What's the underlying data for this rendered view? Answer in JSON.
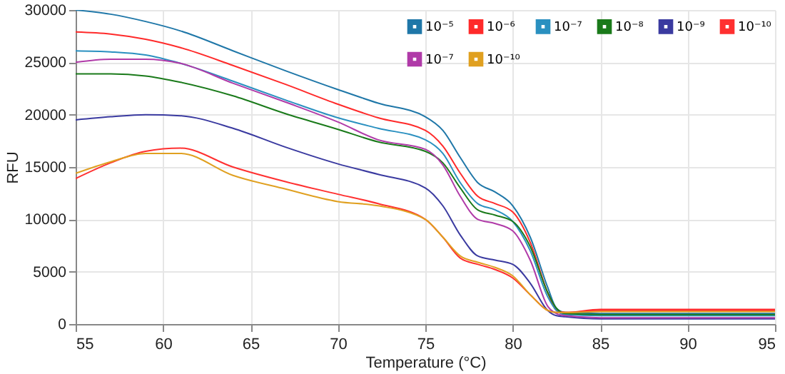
{
  "chart_data": {
    "type": "line",
    "xlabel": "Temperature (°C)",
    "ylabel": "RFU",
    "x": [
      55,
      57,
      59,
      61,
      64,
      67,
      70,
      72.3,
      75,
      76,
      77,
      78,
      79,
      80,
      81,
      82,
      82.5,
      83,
      85,
      90,
      95
    ],
    "xlim": [
      55,
      95
    ],
    "xticks": [
      55,
      60,
      65,
      70,
      75,
      80,
      85,
      90,
      95
    ],
    "ylim": [
      0,
      30000
    ],
    "yticks": [
      0,
      5000,
      10000,
      15000,
      20000,
      25000,
      30000
    ],
    "grid": true,
    "legend": "top right",
    "series": [
      {
        "name": "10⁻⁵",
        "color": "#1f77a8",
        "values": [
          30000,
          29600,
          28900,
          28000,
          26100,
          24200,
          22400,
          21100,
          19800,
          18500,
          15900,
          13500,
          12600,
          11300,
          8300,
          3500,
          1500,
          1100,
          1000,
          1000,
          1000
        ]
      },
      {
        "name": "10⁻⁶",
        "color": "#ff2a2a",
        "values": [
          27900,
          27700,
          27200,
          26400,
          24700,
          22900,
          21000,
          19700,
          18500,
          17000,
          14400,
          12200,
          11500,
          10700,
          7800,
          3000,
          1300,
          1100,
          1400,
          1400,
          1400
        ]
      },
      {
        "name": "10⁻⁷",
        "color": "#2a90c0",
        "values": [
          26100,
          26000,
          25700,
          24900,
          23200,
          21400,
          19700,
          18700,
          17600,
          16300,
          13500,
          11500,
          10900,
          9800,
          7000,
          2600,
          1300,
          900,
          800,
          800,
          800
        ]
      },
      {
        "name": "10⁻⁸",
        "color": "#1a7a1a",
        "values": [
          23900,
          23900,
          23700,
          23100,
          21800,
          20100,
          18600,
          17400,
          16500,
          15400,
          13000,
          10900,
          10400,
          9800,
          7400,
          3000,
          1500,
          1000,
          900,
          900,
          900
        ]
      },
      {
        "name": "10⁻⁹",
        "color": "#3a3aa0",
        "values": [
          19500,
          19800,
          20000,
          19900,
          18700,
          16900,
          15300,
          14300,
          13000,
          11300,
          8500,
          6500,
          6100,
          5700,
          3900,
          1300,
          800,
          700,
          500,
          500,
          500
        ]
      },
      {
        "name": "10⁻¹⁰",
        "color": "#ff3030",
        "values": [
          13900,
          15400,
          16500,
          16800,
          15000,
          13600,
          12400,
          11500,
          10000,
          8300,
          6300,
          5700,
          5200,
          4400,
          2800,
          1300,
          1100,
          1100,
          1300,
          1300,
          1300
        ]
      },
      {
        "name": "10⁻⁷",
        "color": "#b03aa8",
        "values": [
          25000,
          25300,
          25300,
          24900,
          23000,
          21200,
          19300,
          17600,
          16700,
          15200,
          12200,
          10000,
          9600,
          8900,
          6100,
          1700,
          1000,
          800,
          600,
          600,
          600
        ]
      },
      {
        "name": "10⁻¹⁰",
        "color": "#e0a020",
        "values": [
          14400,
          15500,
          16300,
          16300,
          14200,
          12900,
          11700,
          11300,
          10000,
          8300,
          6500,
          5900,
          5400,
          4600,
          2800,
          1300,
          1100,
          1100,
          1200,
          1200,
          1200
        ]
      }
    ]
  }
}
